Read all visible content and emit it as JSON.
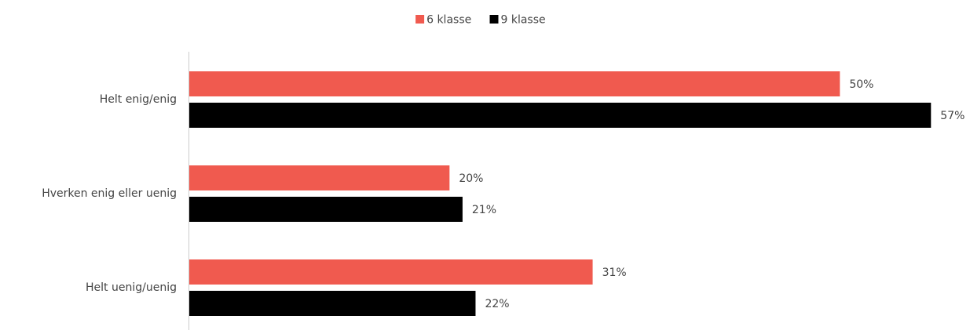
{
  "chart_data": {
    "type": "hbar",
    "categories": [
      "Helt enig/enig",
      "Hverken enig eller uenig",
      "Helt uenig/uenig"
    ],
    "series": [
      {
        "name": "6 klasse",
        "color": "#f05a4f",
        "values": [
          50,
          20,
          31
        ],
        "value_labels": [
          "50%",
          "20%",
          "31%"
        ]
      },
      {
        "name": "9 klasse",
        "color": "#000000",
        "values": [
          57,
          21,
          22
        ],
        "value_labels": [
          "57%",
          "21%",
          "22%"
        ]
      }
    ],
    "xlim": [
      0,
      60
    ],
    "legend": "top"
  }
}
